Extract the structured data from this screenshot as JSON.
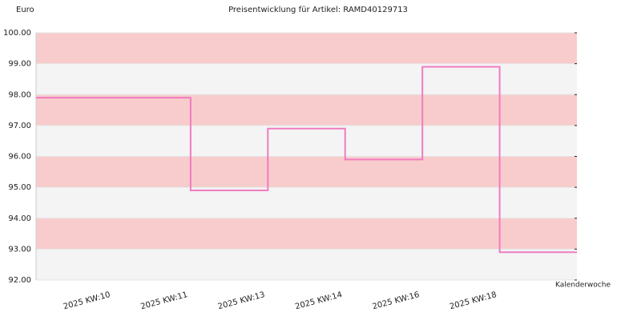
{
  "chart_data": {
    "type": "step",
    "title": "Preisentwicklung für Artikel: RAMD40129713",
    "y_label": "Euro",
    "x_label": "Kalenderwoche",
    "categories": [
      "2025 KW:10",
      "2025 KW:11",
      "2025 KW:13",
      "2025 KW:14",
      "2025 KW:16",
      "2025 KW:18"
    ],
    "values": [
      97.9,
      94.9,
      96.9,
      95.9,
      98.9,
      92.9
    ],
    "color": "#f07cc0",
    "band_colors": [
      "#f8cccc",
      "#f4f4f4"
    ],
    "ylim": [
      92,
      100
    ],
    "yticks": [
      {
        "value": 92,
        "label": "92.00"
      },
      {
        "value": 93,
        "label": "93.00"
      },
      {
        "value": 94,
        "label": "94.00"
      },
      {
        "value": 95,
        "label": "95.00"
      },
      {
        "value": 96,
        "label": "96.00"
      },
      {
        "value": 97,
        "label": "97.00"
      },
      {
        "value": 98,
        "label": "98.00"
      },
      {
        "value": 99,
        "label": "99.00"
      },
      {
        "value": 100,
        "label": "100.00"
      }
    ]
  }
}
